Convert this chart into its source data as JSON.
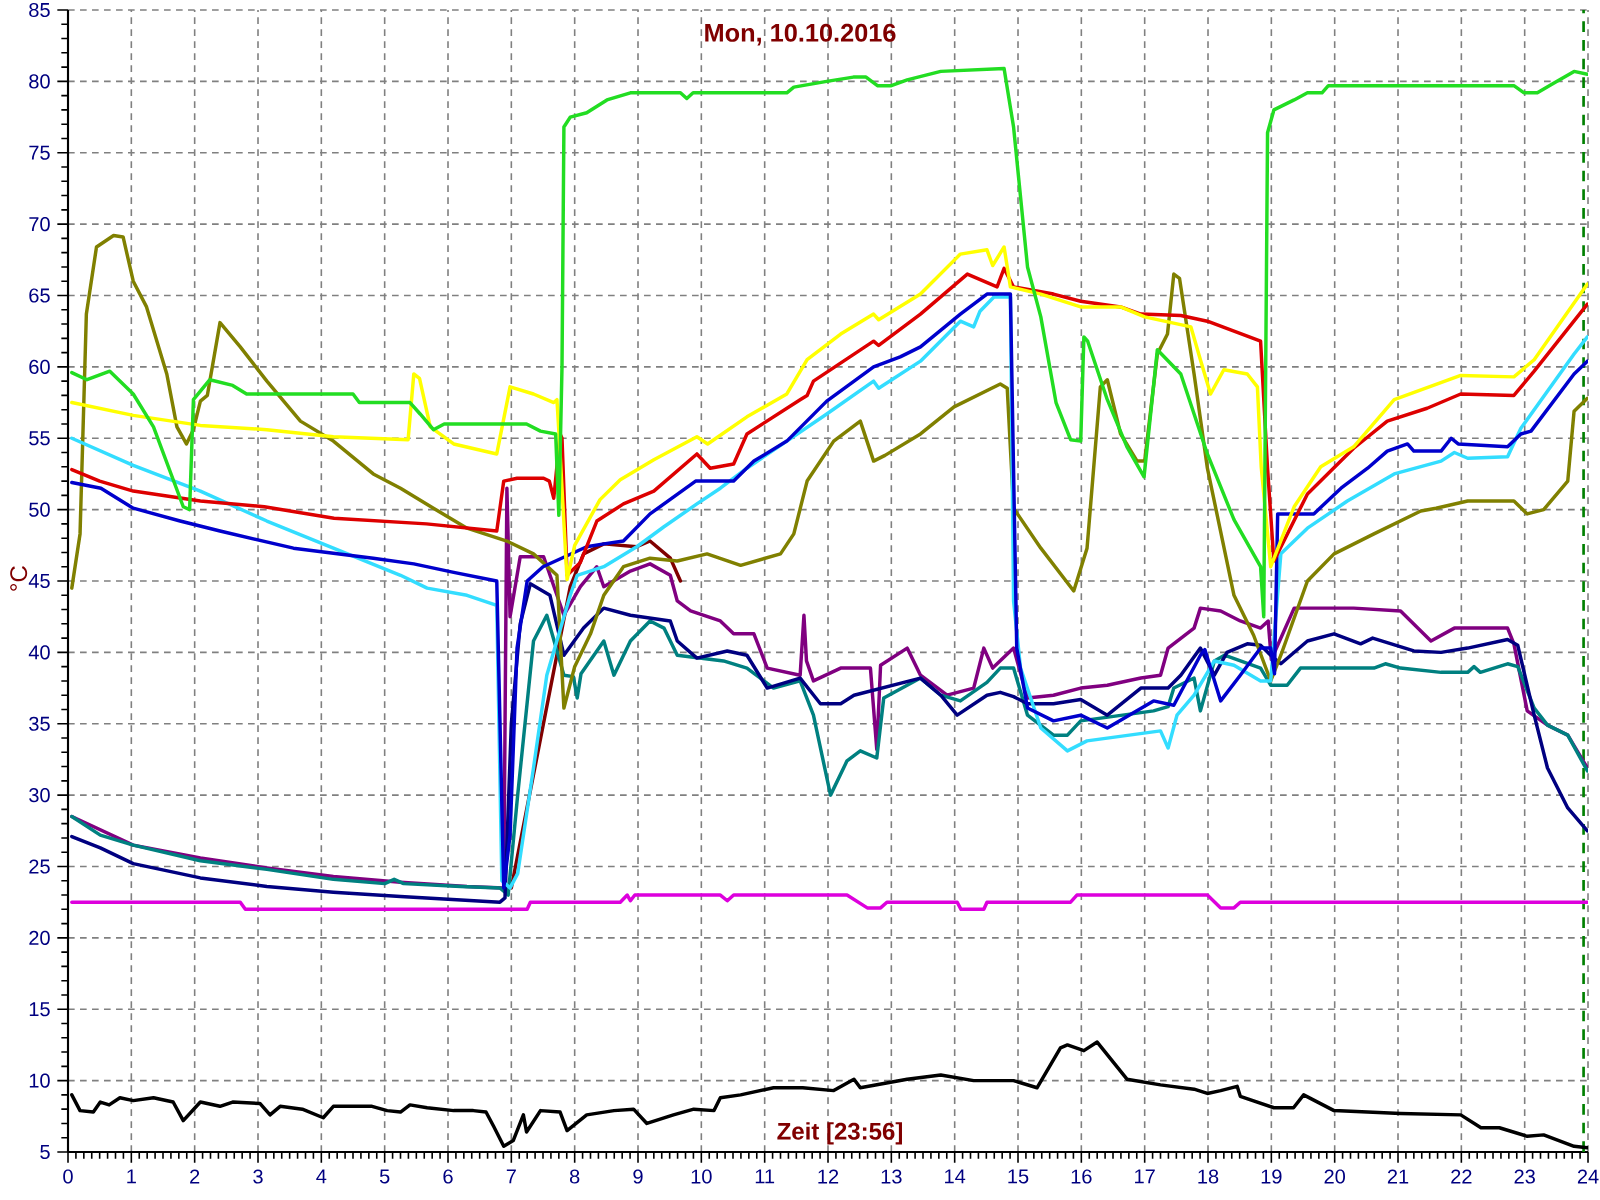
{
  "chart_data": {
    "type": "line",
    "title": "Mon, 10.10.2016",
    "xlabel": "Zeit [23:56]",
    "ylabel": "°C",
    "xlim": [
      0,
      24
    ],
    "ylim": [
      5,
      85
    ],
    "xticks": [
      0,
      1,
      2,
      3,
      4,
      5,
      6,
      7,
      8,
      9,
      10,
      11,
      12,
      13,
      14,
      15,
      16,
      17,
      18,
      19,
      20,
      21,
      22,
      23,
      24
    ],
    "yticks": [
      5,
      10,
      15,
      20,
      25,
      30,
      35,
      40,
      45,
      50,
      55,
      60,
      65,
      70,
      75,
      80,
      85
    ],
    "grid": true,
    "line_style": "solid",
    "ref_lines": [
      {
        "axis": "x",
        "value": 23.93,
        "color": "#008000",
        "line_style": "dashed"
      }
    ],
    "series": [
      {
        "color": "#000000",
        "x": [
          0.06,
          0.19,
          0.4,
          0.51,
          0.65,
          0.82,
          1.03,
          1.35,
          1.66,
          1.82,
          2.09,
          2.4,
          2.6,
          3.03,
          3.19,
          3.35,
          3.7,
          4.03,
          4.19,
          4.8,
          5.04,
          5.25,
          5.4,
          5.67,
          6.09,
          6.4,
          6.6,
          6.72,
          6.88,
          7.03,
          7.19,
          7.24,
          7.46,
          7.77,
          7.88,
          8.19,
          8.62,
          8.93,
          9.14,
          9.56,
          9.88,
          10.2,
          10.3,
          10.62,
          11.14,
          11.6,
          12.09,
          12.41,
          12.51,
          13.25,
          13.78,
          14.3,
          14.93,
          15.3,
          15.67,
          15.78,
          16.04,
          16.25,
          16.72,
          17.25,
          17.78,
          17.99,
          18.2,
          18.46,
          18.51,
          19.04,
          19.35,
          19.51,
          19.99,
          21.04,
          21.99,
          22.31,
          22.6,
          23.04,
          23.3,
          23.78,
          23.99
        ],
        "values": [
          9.0,
          7.9,
          7.8,
          8.5,
          8.3,
          8.8,
          8.6,
          8.8,
          8.5,
          7.2,
          8.5,
          8.2,
          8.5,
          8.4,
          7.6,
          8.2,
          8.0,
          7.4,
          8.2,
          8.2,
          7.9,
          7.8,
          8.3,
          8.1,
          7.9,
          7.9,
          7.8,
          6.8,
          5.4,
          5.8,
          7.6,
          6.4,
          7.9,
          7.8,
          6.5,
          7.6,
          7.9,
          8.0,
          7.0,
          7.6,
          8.0,
          7.9,
          8.8,
          9.0,
          9.5,
          9.5,
          9.3,
          10.1,
          9.5,
          10.1,
          10.4,
          10.0,
          10.0,
          9.5,
          12.3,
          12.5,
          12.1,
          12.7,
          10.1,
          9.7,
          9.4,
          9.1,
          9.3,
          9.6,
          8.9,
          8.1,
          8.1,
          9.0,
          7.9,
          7.7,
          7.6,
          6.7,
          6.7,
          6.1,
          6.2,
          5.4,
          5.3
        ]
      },
      {
        "color": "#dd00dd",
        "x": [
          0.06,
          2.72,
          2.8,
          7.25,
          7.3,
          8.72,
          8.83,
          8.88,
          8.95,
          10.3,
          10.41,
          10.51,
          12.3,
          12.62,
          12.83,
          12.93,
          14.04,
          14.1,
          14.46,
          14.51,
          15.83,
          15.93,
          17.99,
          18.2,
          18.41,
          18.51,
          23.99
        ],
        "values": [
          22.5,
          22.5,
          22.0,
          22.0,
          22.5,
          22.5,
          23.0,
          22.6,
          23.0,
          23.0,
          22.6,
          23.0,
          23.0,
          22.1,
          22.1,
          22.5,
          22.5,
          22.0,
          22.0,
          22.5,
          22.5,
          23.0,
          23.0,
          22.1,
          22.1,
          22.5,
          22.5
        ]
      },
      {
        "color": "#800000",
        "x": [
          7.0,
          7.93,
          8.14,
          8.46,
          8.98,
          9.19,
          9.51,
          9.67
        ],
        "values": [
          23.5,
          44.6,
          46.9,
          47.6,
          47.4,
          47.8,
          46.6,
          45.0
        ]
      },
      {
        "color": "#800080",
        "x": [
          0.06,
          1.03,
          2.09,
          3.14,
          4.19,
          5.25,
          6.3,
          6.88,
          6.93,
          6.98,
          7.14,
          7.51,
          7.83,
          8.09,
          8.35,
          8.46,
          8.88,
          9.19,
          9.51,
          9.62,
          9.83,
          10.3,
          10.51,
          10.83,
          11.04,
          11.56,
          11.62,
          11.66,
          11.77,
          12.2,
          12.67,
          12.77,
          12.83,
          13.25,
          13.46,
          13.88,
          14.3,
          14.46,
          14.6,
          14.93,
          15.15,
          15.56,
          15.99,
          16.41,
          16.94,
          17.25,
          17.37,
          17.78,
          17.88,
          18.2,
          18.51,
          18.83,
          18.95,
          19.0,
          19.36,
          19.88,
          20.3,
          21.04,
          21.52,
          21.89,
          22.73,
          22.83,
          23.04,
          23.36,
          23.68,
          23.99
        ],
        "values": [
          28.5,
          26.5,
          25.6,
          24.9,
          24.3,
          23.9,
          23.6,
          23.5,
          51.5,
          42.5,
          46.7,
          46.7,
          42.6,
          44.6,
          46.0,
          44.6,
          45.7,
          46.2,
          45.4,
          43.6,
          42.9,
          42.2,
          41.3,
          41.3,
          38.9,
          38.4,
          42.6,
          39.4,
          38.0,
          38.9,
          38.9,
          33.2,
          39.1,
          40.3,
          38.4,
          37.0,
          37.5,
          40.3,
          38.9,
          40.3,
          36.8,
          37.0,
          37.5,
          37.7,
          38.2,
          38.4,
          40.3,
          41.7,
          43.1,
          42.9,
          42.2,
          41.7,
          42.2,
          39.5,
          43.1,
          43.1,
          43.1,
          42.9,
          40.8,
          41.7,
          41.7,
          40.6,
          35.9,
          34.9,
          34.2,
          31.9
        ]
      },
      {
        "color": "#008080",
        "x": [
          0.06,
          0.51,
          1.03,
          2.09,
          3.14,
          4.19,
          5.0,
          5.15,
          5.3,
          6.2,
          6.82,
          6.95,
          7.1,
          7.35,
          7.56,
          7.83,
          7.98,
          8.04,
          8.1,
          8.46,
          8.62,
          8.88,
          9.19,
          9.41,
          9.62,
          10.35,
          10.72,
          11.14,
          11.56,
          11.77,
          12.04,
          12.3,
          12.51,
          12.77,
          12.88,
          13.46,
          13.78,
          14.09,
          14.51,
          14.72,
          14.93,
          15.15,
          15.56,
          15.78,
          15.99,
          17.14,
          17.37,
          17.46,
          17.78,
          17.88,
          18.1,
          18.26,
          18.83,
          18.99,
          19.25,
          19.46,
          20.62,
          20.8,
          21.04,
          21.68,
          22.1,
          22.2,
          22.3,
          22.73,
          22.89,
          23.15,
          23.36,
          23.68,
          23.99
        ],
        "values": [
          28.5,
          27.2,
          26.5,
          25.4,
          24.8,
          24.1,
          23.8,
          24.1,
          23.8,
          23.6,
          23.5,
          23.0,
          30.0,
          40.8,
          42.6,
          38.4,
          38.3,
          36.8,
          38.5,
          40.8,
          38.4,
          40.8,
          42.2,
          41.7,
          39.8,
          39.4,
          38.9,
          37.5,
          38.0,
          35.6,
          30.0,
          32.4,
          33.1,
          32.6,
          36.8,
          38.2,
          37.0,
          36.6,
          37.9,
          38.9,
          38.9,
          35.6,
          34.2,
          34.2,
          35.2,
          35.9,
          36.2,
          37.5,
          38.2,
          35.9,
          39.4,
          39.8,
          38.9,
          37.7,
          37.7,
          38.9,
          38.9,
          39.2,
          38.9,
          38.6,
          38.6,
          39.0,
          38.6,
          39.2,
          39.0,
          36.1,
          34.9,
          34.2,
          31.7
        ]
      },
      {
        "color": "#000080",
        "x": [
          0.06,
          0.51,
          1.03,
          2.09,
          3.14,
          4.19,
          5.25,
          6.82,
          6.9,
          7.0,
          7.14,
          7.3,
          7.61,
          7.83,
          8.14,
          8.46,
          8.88,
          9.51,
          9.62,
          9.93,
          10.41,
          10.72,
          11.04,
          11.56,
          11.88,
          12.2,
          12.41,
          13.46,
          13.78,
          14.04,
          14.51,
          14.72,
          14.93,
          15.15,
          15.56,
          15.99,
          16.41,
          16.94,
          17.37,
          17.57,
          17.88,
          18.1,
          18.3,
          18.62,
          18.83,
          18.99,
          19.15,
          19.57,
          19.99,
          20.41,
          20.6,
          21.25,
          21.68,
          22.1,
          22.73,
          22.89,
          23.15,
          23.36,
          23.68,
          23.99
        ],
        "values": [
          27.1,
          26.3,
          25.2,
          24.2,
          23.6,
          23.2,
          22.9,
          22.5,
          22.8,
          35.0,
          42.0,
          44.8,
          44.0,
          39.8,
          41.7,
          43.1,
          42.6,
          42.2,
          40.8,
          39.6,
          40.1,
          39.8,
          37.5,
          38.2,
          36.4,
          36.4,
          37.0,
          38.2,
          37.0,
          35.6,
          37.0,
          37.2,
          36.9,
          36.4,
          36.4,
          36.7,
          35.6,
          37.5,
          37.5,
          38.4,
          40.3,
          38.4,
          40.0,
          40.6,
          40.5,
          39.8,
          39.2,
          40.8,
          41.3,
          40.6,
          41.0,
          40.1,
          40.0,
          40.3,
          40.9,
          40.5,
          35.6,
          31.9,
          29.1,
          27.5
        ]
      },
      {
        "color": "#808000",
        "x": [
          0.06,
          0.19,
          0.29,
          0.45,
          0.72,
          0.87,
          1.03,
          1.24,
          1.56,
          1.72,
          1.87,
          1.98,
          2.09,
          2.2,
          2.4,
          2.72,
          3.14,
          3.67,
          4.19,
          4.82,
          5.25,
          5.77,
          6.3,
          6.93,
          7.35,
          7.72,
          7.83,
          8.0,
          8.25,
          8.46,
          8.77,
          9.19,
          9.62,
          10.09,
          10.62,
          11.25,
          11.46,
          11.67,
          12.09,
          12.51,
          12.72,
          12.9,
          13.46,
          13.99,
          14.72,
          14.83,
          14.93,
          15.36,
          15.88,
          16.09,
          16.3,
          16.41,
          16.62,
          16.88,
          17.0,
          17.2,
          17.36,
          17.46,
          17.55,
          17.78,
          17.99,
          18.41,
          18.72,
          18.99,
          19.15,
          19.57,
          19.99,
          20.62,
          21.36,
          21.6,
          22.1,
          22.83,
          23.04,
          23.3,
          23.68,
          23.78,
          23.99
        ],
        "values": [
          44.5,
          48.3,
          63.7,
          68.4,
          69.2,
          69.1,
          66.0,
          64.2,
          59.5,
          55.8,
          54.6,
          55.6,
          57.6,
          58.0,
          63.1,
          61.4,
          59.0,
          56.2,
          54.8,
          52.5,
          51.5,
          50.1,
          48.7,
          47.8,
          46.9,
          45.4,
          36.1,
          39.0,
          41.3,
          44.0,
          46.0,
          46.6,
          46.4,
          46.9,
          46.1,
          46.9,
          48.3,
          52.0,
          54.8,
          56.2,
          53.4,
          53.8,
          55.3,
          57.2,
          58.8,
          58.5,
          50.1,
          47.3,
          44.3,
          47.3,
          58.6,
          59.1,
          55.3,
          53.4,
          53.4,
          60.9,
          62.3,
          66.5,
          66.2,
          59.5,
          52.9,
          44.0,
          41.2,
          38.0,
          39.8,
          45.0,
          46.9,
          48.3,
          49.9,
          50.1,
          50.6,
          50.6,
          49.7,
          50.0,
          52.0,
          56.9,
          57.8
        ]
      },
      {
        "color": "#33ddff",
        "x": [
          0.06,
          1.03,
          2.09,
          3.14,
          4.19,
          5.25,
          5.67,
          6.3,
          6.77,
          6.85,
          6.98,
          7.1,
          7.35,
          7.56,
          7.93,
          8.04,
          8.46,
          8.98,
          9.41,
          9.93,
          10.3,
          10.72,
          11.35,
          11.98,
          12.72,
          12.8,
          13.46,
          14.09,
          14.3,
          14.4,
          14.62,
          14.88,
          14.93,
          15.04,
          15.36,
          15.78,
          16.09,
          17.25,
          17.37,
          17.51,
          17.78,
          18.1,
          18.41,
          18.83,
          18.99,
          19.15,
          19.57,
          20.2,
          20.94,
          21.68,
          21.89,
          22.1,
          22.73,
          22.94,
          23.78,
          23.99
        ],
        "values": [
          55.0,
          53.1,
          51.3,
          49.2,
          47.3,
          45.4,
          44.5,
          44.0,
          43.3,
          24.0,
          23.5,
          24.5,
          31.9,
          38.4,
          44.0,
          45.4,
          46.0,
          47.4,
          48.8,
          50.4,
          51.5,
          52.9,
          54.8,
          56.7,
          59.0,
          58.5,
          60.4,
          63.2,
          62.8,
          63.9,
          64.9,
          64.9,
          43.6,
          38.9,
          34.7,
          33.1,
          33.8,
          34.5,
          33.3,
          35.6,
          37.0,
          39.4,
          39.1,
          38.0,
          38.0,
          46.9,
          48.7,
          50.6,
          52.5,
          53.4,
          54.0,
          53.6,
          53.7,
          55.7,
          60.9,
          62.1
        ]
      },
      {
        "color": "#0000cc",
        "x": [
          0.06,
          0.52,
          1.03,
          1.77,
          2.4,
          3.56,
          4.82,
          5.46,
          6.09,
          6.77,
          6.88,
          6.98,
          7.09,
          7.25,
          7.5,
          8.19,
          8.46,
          8.77,
          9.19,
          9.91,
          10.51,
          10.83,
          11.35,
          11.98,
          12.72,
          13.14,
          13.46,
          14.09,
          14.51,
          14.88,
          14.98,
          15.15,
          15.56,
          15.99,
          16.41,
          16.6,
          17.14,
          17.46,
          17.88,
          17.95,
          18.2,
          18.51,
          18.83,
          18.99,
          19.05,
          19.1,
          19.67,
          20.1,
          20.52,
          20.83,
          21.15,
          21.25,
          21.68,
          21.84,
          21.95,
          22.73,
          22.94,
          23.1,
          23.78,
          23.99
        ],
        "values": [
          51.9,
          51.5,
          50.1,
          49.2,
          48.5,
          47.3,
          46.6,
          46.2,
          45.6,
          45.0,
          23.5,
          27.2,
          40.3,
          45.0,
          46.0,
          47.4,
          47.6,
          47.8,
          49.7,
          52.0,
          52.0,
          53.4,
          54.8,
          57.6,
          60.0,
          60.7,
          61.4,
          63.7,
          65.1,
          65.1,
          40.3,
          36.1,
          35.2,
          35.6,
          34.7,
          35.2,
          36.6,
          36.3,
          39.8,
          40.2,
          36.6,
          38.4,
          40.3,
          40.3,
          38.5,
          49.7,
          49.7,
          51.5,
          52.9,
          54.1,
          54.6,
          54.1,
          54.1,
          55.0,
          54.6,
          54.4,
          55.3,
          55.5,
          59.5,
          60.4
        ]
      },
      {
        "color": "#dd0000",
        "x": [
          0.06,
          0.5,
          1.03,
          2.09,
          3.1,
          4.2,
          5.66,
          6.77,
          6.88,
          7.09,
          7.51,
          7.6,
          7.67,
          7.77,
          7.8,
          7.88,
          8.09,
          8.35,
          8.77,
          9.25,
          9.93,
          10.14,
          10.51,
          10.72,
          11.56,
          11.67,
          11.77,
          12.72,
          12.8,
          13.46,
          14.2,
          14.67,
          14.78,
          14.93,
          15.56,
          15.99,
          16.62,
          16.94,
          17.57,
          17.99,
          18.83,
          18.94,
          19.04,
          19.57,
          20.3,
          20.83,
          21.46,
          21.99,
          22.83,
          23.15,
          23.99
        ],
        "values": [
          52.8,
          52.0,
          51.3,
          50.6,
          50.2,
          49.4,
          49.0,
          48.5,
          52.0,
          52.2,
          52.2,
          52.0,
          50.8,
          55.3,
          55.0,
          45.4,
          46.3,
          49.2,
          50.4,
          51.3,
          53.9,
          52.9,
          53.2,
          55.3,
          57.7,
          58.0,
          59.0,
          61.8,
          61.5,
          63.7,
          66.5,
          65.6,
          66.9,
          65.6,
          65.1,
          64.6,
          64.2,
          63.7,
          63.6,
          63.2,
          61.8,
          52.9,
          46.4,
          51.1,
          54.3,
          56.2,
          57.1,
          58.1,
          58.0,
          59.7,
          64.4
        ]
      },
      {
        "color": "#ffff00",
        "x": [
          0.06,
          1.03,
          2.09,
          3.14,
          4.19,
          5.37,
          5.46,
          5.55,
          5.72,
          6.09,
          6.77,
          6.98,
          7.35,
          7.67,
          7.72,
          7.75,
          7.88,
          8.0,
          8.4,
          8.72,
          9.25,
          9.93,
          10.1,
          10.72,
          11.35,
          11.67,
          12.2,
          12.72,
          12.8,
          13.46,
          14.09,
          14.51,
          14.6,
          14.78,
          14.88,
          15.36,
          15.99,
          16.62,
          17.0,
          17.73,
          17.88,
          18.04,
          18.25,
          18.62,
          18.78,
          18.84,
          18.99,
          19.36,
          19.78,
          20.3,
          20.94,
          21.99,
          22.83,
          23.15,
          23.99
        ],
        "values": [
          57.5,
          56.6,
          55.9,
          55.6,
          55.1,
          54.9,
          59.5,
          59.2,
          55.8,
          54.6,
          53.9,
          58.6,
          58.1,
          57.5,
          57.7,
          55.5,
          45.1,
          47.5,
          50.7,
          52.1,
          53.5,
          55.1,
          54.6,
          56.5,
          58.1,
          60.5,
          62.3,
          63.7,
          63.3,
          65.1,
          67.9,
          68.2,
          67.1,
          68.4,
          65.6,
          65.1,
          64.2,
          64.2,
          63.5,
          62.8,
          60.5,
          58.1,
          59.8,
          59.5,
          58.6,
          53.0,
          46.0,
          50.2,
          53.0,
          54.4,
          57.7,
          59.4,
          59.3,
          60.5,
          65.8
        ]
      },
      {
        "color": "#22dd22",
        "x": [
          0.06,
          0.3,
          0.66,
          1.03,
          1.35,
          1.82,
          1.92,
          1.98,
          2.24,
          2.6,
          2.82,
          4.5,
          4.6,
          5.4,
          5.56,
          5.77,
          5.94,
          7.24,
          7.46,
          7.7,
          7.75,
          7.8,
          7.83,
          7.93,
          8.19,
          8.51,
          8.88,
          9.67,
          9.77,
          9.87,
          11.35,
          11.46,
          11.98,
          12.4,
          12.6,
          12.78,
          13.0,
          13.25,
          13.78,
          14.78,
          14.93,
          15.15,
          15.36,
          15.6,
          15.83,
          15.99,
          16.04,
          16.1,
          16.41,
          16.72,
          16.99,
          17.2,
          17.57,
          17.99,
          18.41,
          18.83,
          18.88,
          18.94,
          19.04,
          19.36,
          19.57,
          19.8,
          19.9,
          20.73,
          22.83,
          22.99,
          23.2,
          23.47,
          23.78,
          23.99
        ],
        "values": [
          59.6,
          59.1,
          59.7,
          58.1,
          55.8,
          50.2,
          50.0,
          57.7,
          59.1,
          58.7,
          58.1,
          58.1,
          57.5,
          57.5,
          56.7,
          55.6,
          56.0,
          56.0,
          55.5,
          55.3,
          49.6,
          60.0,
          76.8,
          77.5,
          77.8,
          78.7,
          79.2,
          79.2,
          78.8,
          79.2,
          79.2,
          79.6,
          80.0,
          80.3,
          80.3,
          79.7,
          79.7,
          80.1,
          80.7,
          80.9,
          76.8,
          67.0,
          63.5,
          57.5,
          54.9,
          54.8,
          62.1,
          61.8,
          57.7,
          54.4,
          52.3,
          61.2,
          59.5,
          53.9,
          49.3,
          46.0,
          42.5,
          76.4,
          78.0,
          78.7,
          79.2,
          79.2,
          79.7,
          79.7,
          79.7,
          79.2,
          79.2,
          79.9,
          80.7,
          80.5
        ]
      }
    ]
  }
}
